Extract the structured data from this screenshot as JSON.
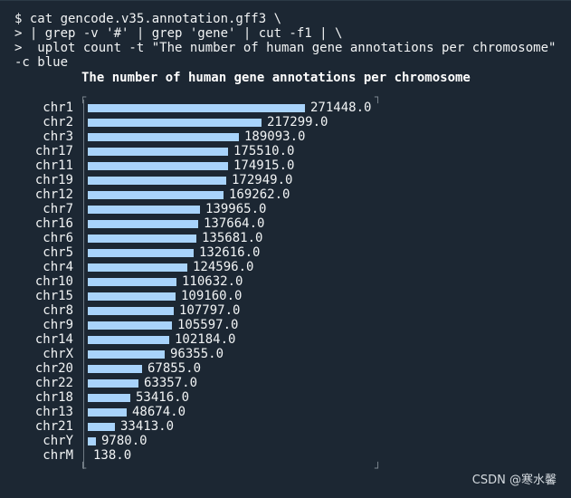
{
  "terminal": {
    "command_lines": [
      "$ cat gencode.v35.annotation.gff3 \\",
      "> | grep -v '#' | grep 'gene' | cut -f1 | \\",
      ">  uplot count -t \"The number of human gene annotations per chromosome\"",
      "-c blue"
    ],
    "watermark": "CSDN @寒水馨"
  },
  "chart_data": {
    "type": "bar",
    "orientation": "horizontal",
    "title": "The number of human gene annotations per chromosome",
    "bar_color": "#a8d3fb",
    "xlim": [
      0,
      271448
    ],
    "categories": [
      "chr1",
      "chr2",
      "chr3",
      "chr17",
      "chr11",
      "chr19",
      "chr12",
      "chr7",
      "chr16",
      "chr6",
      "chr5",
      "chr4",
      "chr10",
      "chr15",
      "chr8",
      "chr9",
      "chr14",
      "chrX",
      "chr20",
      "chr22",
      "chr18",
      "chr13",
      "chr21",
      "chrY",
      "chrM"
    ],
    "values": [
      271448,
      217299,
      189093,
      175510,
      174915,
      172949,
      169262,
      139965,
      137664,
      135681,
      132616,
      124596,
      110632,
      109160,
      107797,
      105597,
      102184,
      96355,
      67855,
      63357,
      53416,
      48674,
      33413,
      9780,
      138
    ],
    "value_labels": [
      "271448.0",
      "217299.0",
      "189093.0",
      "175510.0",
      "174915.0",
      "172949.0",
      "169262.0",
      "139965.0",
      "137664.0",
      "135681.0",
      "132616.0",
      "124596.0",
      "110632.0",
      "109160.0",
      "107797.0",
      "105597.0",
      "102184.0",
      "96355.0",
      "67855.0",
      "63357.0",
      "53416.0",
      "48674.0",
      "33413.0",
      "9780.0",
      "138.0"
    ]
  }
}
